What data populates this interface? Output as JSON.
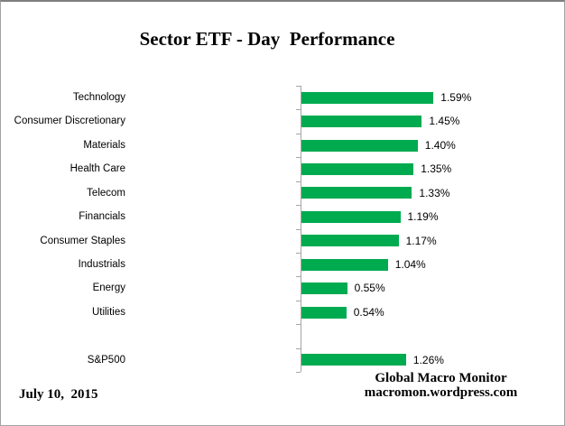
{
  "title": "Sector ETF - Day  Performance",
  "footer": {
    "date": "July 10,  2015",
    "brand_line1": "Global Macro Monitor",
    "brand_line2": "macromon.wordpress.com"
  },
  "chart_data": {
    "type": "bar",
    "orientation": "horizontal",
    "title": "Sector ETF - Day  Performance",
    "categories": [
      "Technology",
      "Consumer Discretionary",
      "Materials",
      "Health Care",
      "Telecom",
      "Financials",
      "Consumer Staples",
      "Industrials",
      "Energy",
      "Utilities",
      "",
      "S&P500"
    ],
    "values": [
      1.59,
      1.45,
      1.4,
      1.35,
      1.33,
      1.19,
      1.17,
      1.04,
      0.55,
      0.54,
      null,
      1.26
    ],
    "value_labels": [
      "1.59%",
      "1.45%",
      "1.40%",
      "1.35%",
      "1.33%",
      "1.19%",
      "1.17%",
      "1.04%",
      "0.55%",
      "0.54%",
      "",
      "1.26%"
    ],
    "bar_color": "#00AB50",
    "axis_color": "#a6a6a6",
    "xlim": [
      0,
      1.8
    ],
    "grid": false,
    "legend": false,
    "data_labels": true
  }
}
